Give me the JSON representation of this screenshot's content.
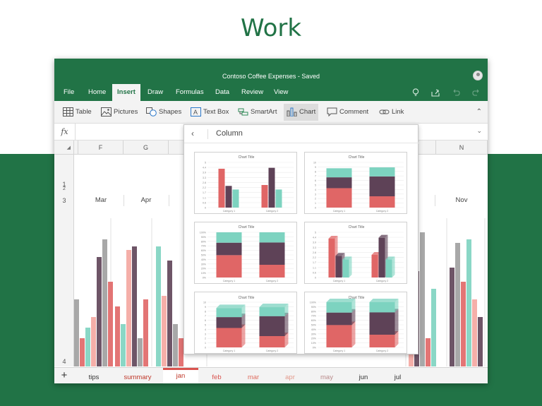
{
  "hero": {
    "title": "Work"
  },
  "window": {
    "title": "Contoso Coffee Expenses - Saved"
  },
  "menu": [
    {
      "label": "File"
    },
    {
      "label": "Home"
    },
    {
      "label": "Insert",
      "active": true
    },
    {
      "label": "Draw"
    },
    {
      "label": "Formulas"
    },
    {
      "label": "Data"
    },
    {
      "label": "Review"
    },
    {
      "label": "View"
    }
  ],
  "menu_icons": [
    "lightbulb-icon",
    "share-icon",
    "undo-icon",
    "redo-icon"
  ],
  "ribbon": [
    {
      "label": "Table",
      "icon": "table-icon"
    },
    {
      "label": "Pictures",
      "icon": "pictures-icon"
    },
    {
      "label": "Shapes",
      "icon": "shapes-icon"
    },
    {
      "label": "Text Box",
      "icon": "textbox-icon"
    },
    {
      "label": "SmartArt",
      "icon": "smartart-icon"
    },
    {
      "label": "Chart",
      "icon": "chart-icon",
      "selected": true
    },
    {
      "label": "Comment",
      "icon": "comment-icon"
    },
    {
      "label": "Link",
      "icon": "link-icon"
    }
  ],
  "formula_bar": {
    "fx": "fx",
    "value": ""
  },
  "columns": [
    "F",
    "G",
    "N"
  ],
  "rows": [
    "1",
    "2",
    "3",
    "4"
  ],
  "months": [
    "Mar",
    "Apr",
    "Nov"
  ],
  "sheet_tabs": [
    {
      "label": "tips",
      "color": "#333333"
    },
    {
      "label": "summary",
      "color": "#c0392b"
    },
    {
      "label": "jan",
      "color": "#c0392b",
      "active": true
    },
    {
      "label": "feb",
      "color": "#d9534f"
    },
    {
      "label": "mar",
      "color": "#e07062"
    },
    {
      "label": "apr",
      "color": "#e39a8c"
    },
    {
      "label": "may",
      "color": "#b98a8a"
    },
    {
      "label": "jun",
      "color": "#333333"
    },
    {
      "label": "jul",
      "color": "#333333"
    }
  ],
  "colors": {
    "brand": "#217346",
    "red": "#e06666",
    "purple": "#5e4257",
    "teal": "#7dd3c0",
    "gray": "#9e9e9e",
    "pink": "#f4a6a0"
  },
  "popup": {
    "title": "Column",
    "thumb_title": "Chart Title",
    "thumb_cats": [
      "Category 1",
      "Category 2"
    ]
  },
  "chart_data": [
    {
      "type": "bar",
      "title": "Chart Title",
      "categories": [
        "Category 1",
        "Category 2"
      ],
      "series": [
        {
          "values": [
            4.3,
            2.5
          ]
        },
        {
          "values": [
            2.4,
            4.4
          ]
        },
        {
          "values": [
            2.0,
            2.0
          ]
        }
      ],
      "ylim": [
        0,
        5
      ]
    },
    {
      "type": "bar",
      "stacked": true,
      "title": "Chart Title",
      "categories": [
        "Category 1",
        "Category 2"
      ],
      "series": [
        {
          "values": [
            4.3,
            2.5
          ]
        },
        {
          "values": [
            2.4,
            4.4
          ]
        },
        {
          "values": [
            2.0,
            2.0
          ]
        }
      ],
      "ylim": [
        0,
        10
      ]
    },
    {
      "type": "bar",
      "stacked": true,
      "percent": true,
      "title": "Chart Title",
      "categories": [
        "Category 1",
        "Category 2"
      ],
      "series": [
        {
          "values": [
            4.3,
            2.5
          ]
        },
        {
          "values": [
            2.4,
            4.4
          ]
        },
        {
          "values": [
            2.0,
            2.0
          ]
        }
      ],
      "ylim": [
        0,
        100
      ]
    },
    {
      "type": "bar",
      "three_d": true,
      "title": "Chart Title",
      "categories": [
        "Category 1",
        "Category 2"
      ],
      "series": [
        {
          "values": [
            4.3,
            2.5
          ]
        },
        {
          "values": [
            2.4,
            4.4
          ]
        },
        {
          "values": [
            2.0,
            2.0
          ]
        }
      ],
      "ylim": [
        0,
        5
      ]
    },
    {
      "type": "bar",
      "three_d": true,
      "stacked": true,
      "title": "Chart Title",
      "categories": [
        "Category 1",
        "Category 2"
      ],
      "series": [
        {
          "values": [
            4.3,
            2.5
          ]
        },
        {
          "values": [
            2.4,
            4.4
          ]
        },
        {
          "values": [
            2.0,
            2.0
          ]
        }
      ],
      "ylim": [
        0,
        10
      ]
    },
    {
      "type": "bar",
      "three_d": true,
      "stacked": true,
      "percent": true,
      "title": "Chart Title",
      "categories": [
        "Category 1",
        "Category 2"
      ],
      "series": [
        {
          "values": [
            4.3,
            2.5
          ]
        },
        {
          "values": [
            2.4,
            4.4
          ]
        },
        {
          "values": [
            2.0,
            2.0
          ]
        }
      ],
      "ylim": [
        0,
        100
      ]
    }
  ]
}
